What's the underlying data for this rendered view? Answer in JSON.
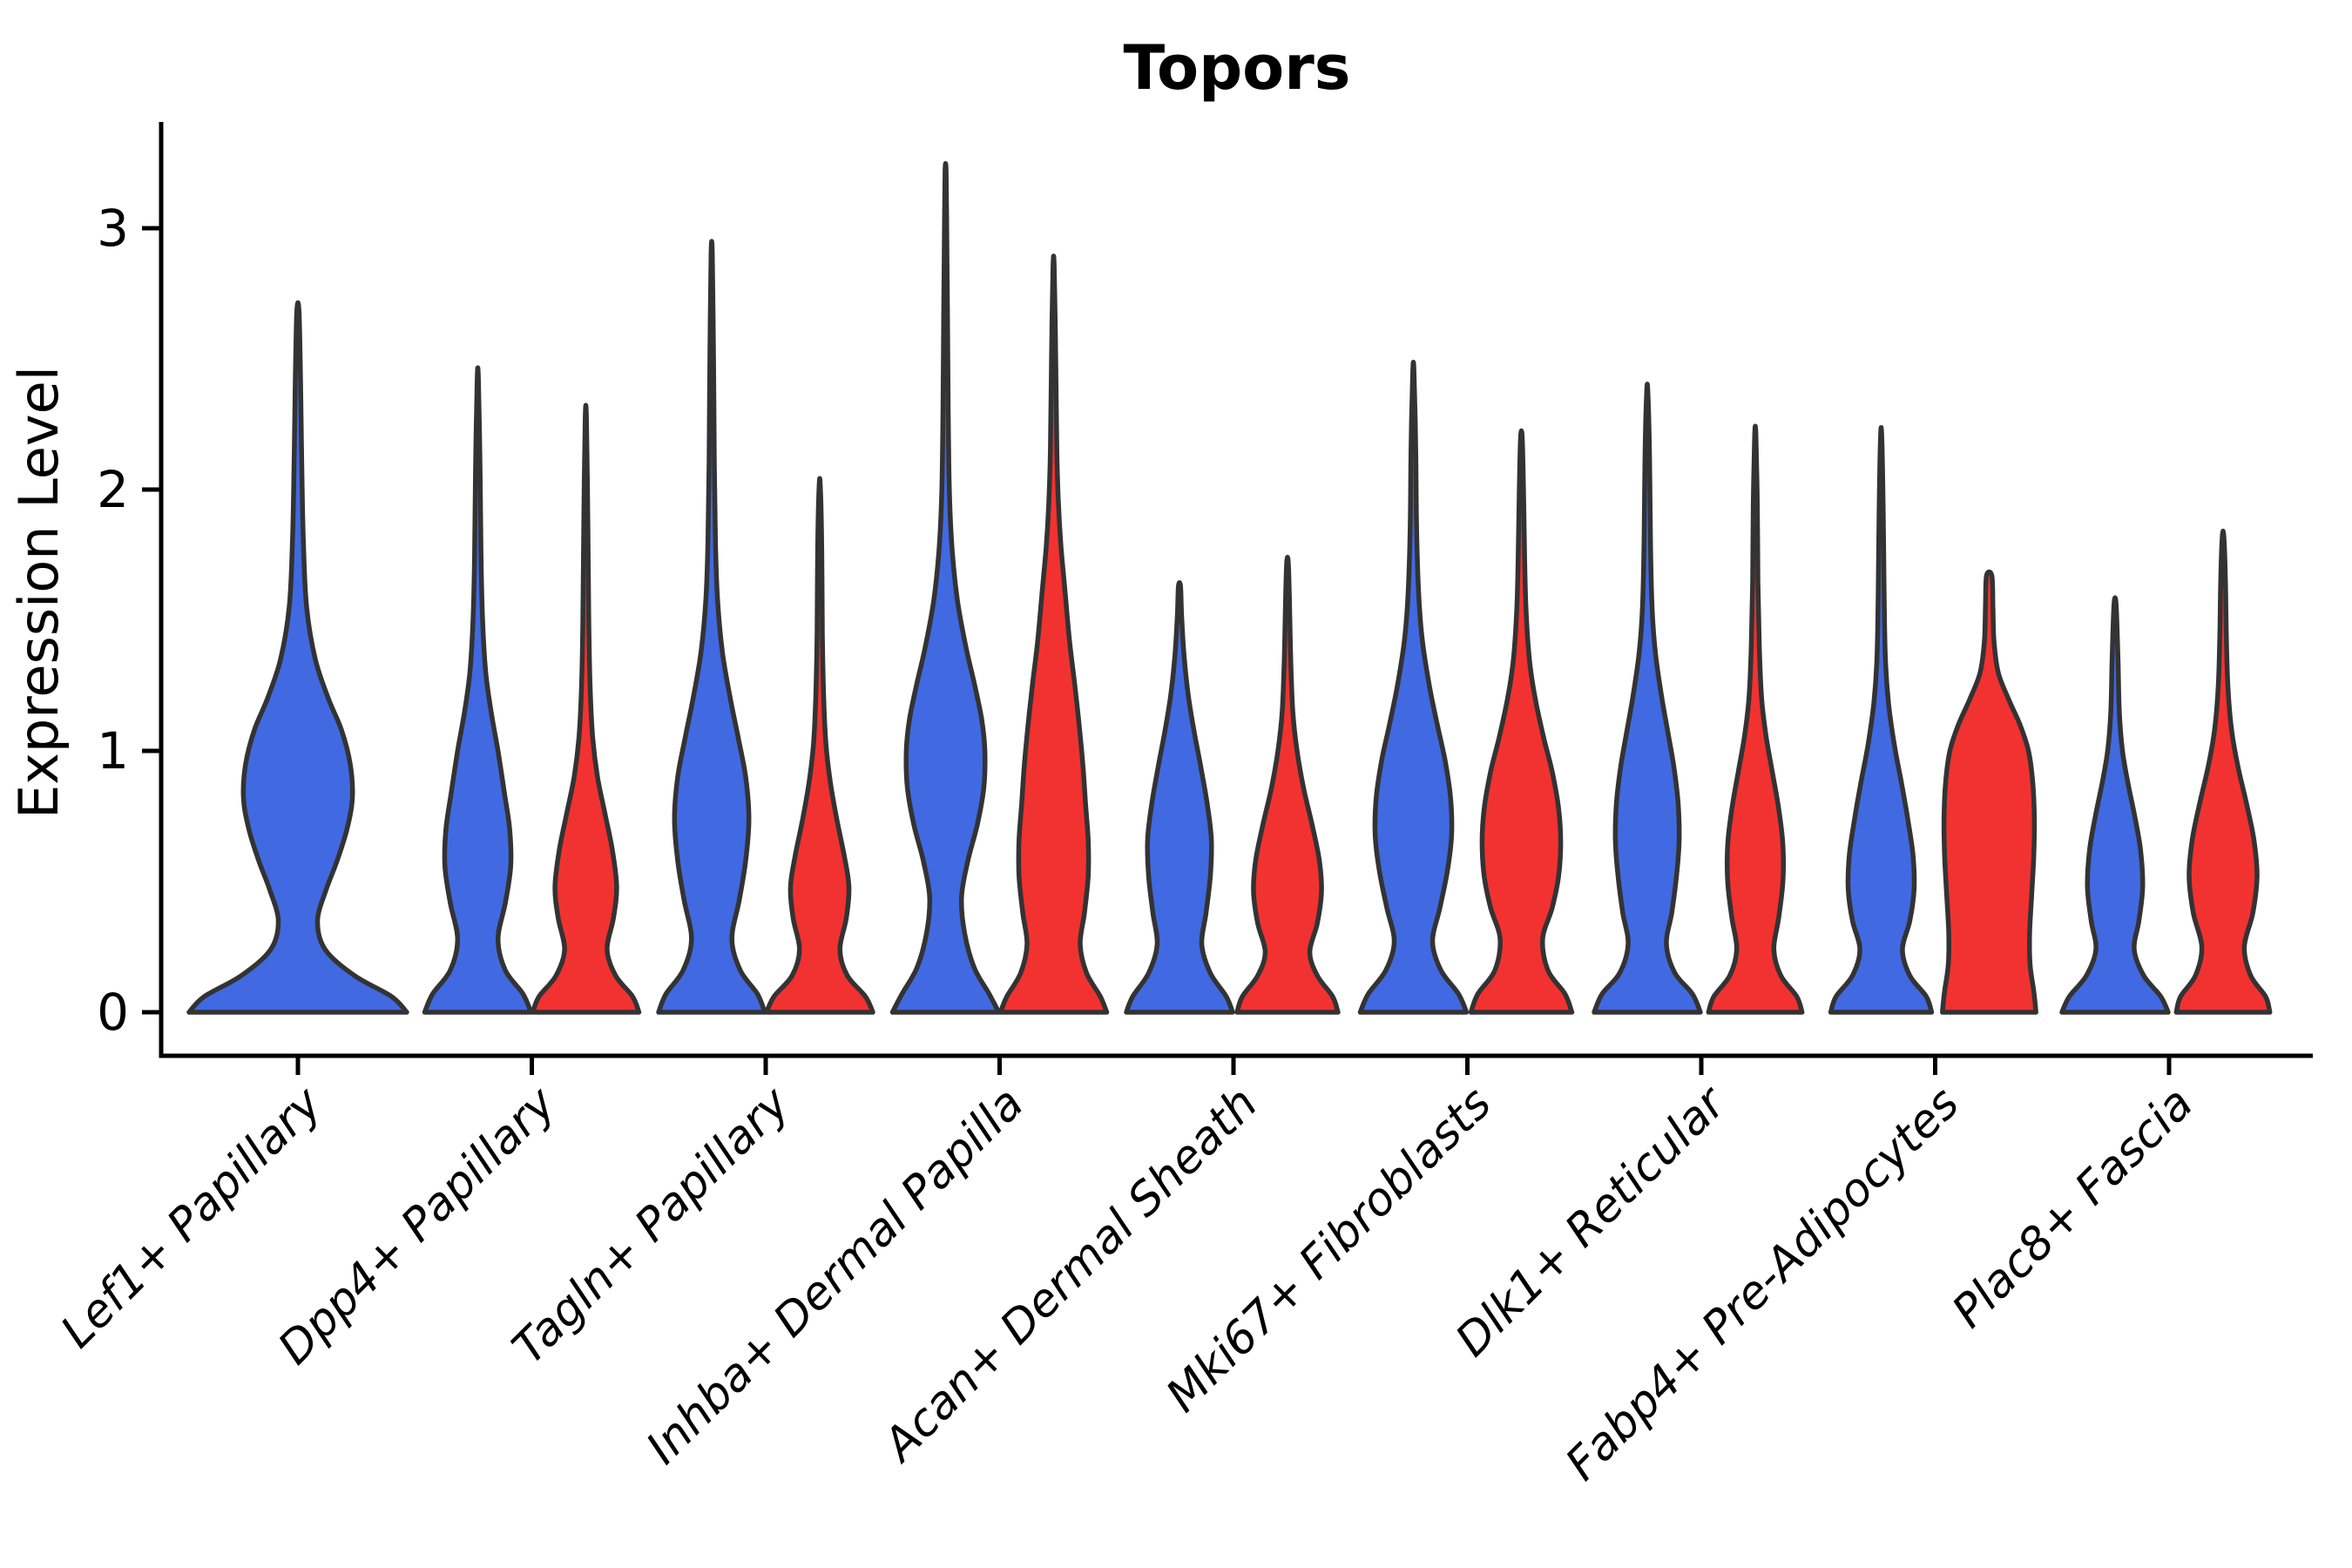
{
  "chart_data": {
    "type": "violin",
    "title": "Topors",
    "ylabel": "Expression Level",
    "xlabel": "",
    "yticks": [
      0,
      1,
      2,
      3
    ],
    "ylim": [
      0,
      3.4
    ],
    "grid": false,
    "legend": "none",
    "groups": {
      "blue": "#4169E1",
      "red": "#F23230"
    },
    "outline_color": "#333333",
    "axis_color": "#000000",
    "categories": [
      "Lef1+ Papillary",
      "Dpp4+ Papillary",
      "Tagln+ Papillary",
      "Inhba+ Dermal Papilla",
      "Acan+ Dermal Sheath",
      "Mki67+ Fibroblasts",
      "Dlk1+ Reticular",
      "Fabp4+ Pre-Adipocytes",
      "Plac8+ Fascia"
    ],
    "violins": [
      {
        "category": "Lef1+ Papillary",
        "group": "blue",
        "position": 0,
        "offset": 0,
        "width_scale": 2.05,
        "max_expression": 2.68,
        "profile": [
          [
            0,
            1.0
          ],
          [
            0.06,
            0.86
          ],
          [
            0.14,
            0.52
          ],
          [
            0.24,
            0.25
          ],
          [
            0.35,
            0.18
          ],
          [
            0.47,
            0.26
          ],
          [
            0.58,
            0.36
          ],
          [
            0.7,
            0.45
          ],
          [
            0.82,
            0.5
          ],
          [
            0.95,
            0.48
          ],
          [
            1.08,
            0.4
          ],
          [
            1.2,
            0.28
          ],
          [
            1.35,
            0.16
          ],
          [
            1.55,
            0.08
          ],
          [
            1.8,
            0.05
          ],
          [
            2.1,
            0.035
          ],
          [
            2.4,
            0.025
          ],
          [
            2.68,
            0.01
          ]
        ]
      },
      {
        "category": "Dpp4+ Papillary",
        "group": "blue",
        "position": 1,
        "offset": -1,
        "width_scale": 1,
        "max_expression": 2.42,
        "profile": [
          [
            0,
            1.0
          ],
          [
            0.07,
            0.85
          ],
          [
            0.16,
            0.52
          ],
          [
            0.28,
            0.38
          ],
          [
            0.42,
            0.52
          ],
          [
            0.56,
            0.62
          ],
          [
            0.7,
            0.6
          ],
          [
            0.84,
            0.5
          ],
          [
            1.0,
            0.38
          ],
          [
            1.15,
            0.25
          ],
          [
            1.3,
            0.15
          ],
          [
            1.5,
            0.09
          ],
          [
            1.75,
            0.06
          ],
          [
            2.05,
            0.045
          ],
          [
            2.42,
            0.012
          ]
        ]
      },
      {
        "category": "Dpp4+ Papillary",
        "group": "red",
        "position": 1,
        "offset": 1,
        "width_scale": 1,
        "max_expression": 2.27,
        "profile": [
          [
            0,
            1.0
          ],
          [
            0.06,
            0.88
          ],
          [
            0.14,
            0.56
          ],
          [
            0.24,
            0.4
          ],
          [
            0.36,
            0.52
          ],
          [
            0.48,
            0.58
          ],
          [
            0.62,
            0.5
          ],
          [
            0.76,
            0.36
          ],
          [
            0.9,
            0.22
          ],
          [
            1.05,
            0.13
          ],
          [
            1.25,
            0.08
          ],
          [
            1.5,
            0.055
          ],
          [
            1.85,
            0.04
          ],
          [
            2.27,
            0.012
          ]
        ]
      },
      {
        "category": "Tagln+ Papillary",
        "group": "blue",
        "position": 2,
        "offset": -1,
        "width_scale": 1,
        "max_expression": 2.9,
        "profile": [
          [
            0,
            1.0
          ],
          [
            0.07,
            0.86
          ],
          [
            0.16,
            0.54
          ],
          [
            0.28,
            0.38
          ],
          [
            0.43,
            0.52
          ],
          [
            0.58,
            0.64
          ],
          [
            0.74,
            0.7
          ],
          [
            0.9,
            0.64
          ],
          [
            1.05,
            0.5
          ],
          [
            1.2,
            0.35
          ],
          [
            1.38,
            0.2
          ],
          [
            1.58,
            0.11
          ],
          [
            1.8,
            0.07
          ],
          [
            2.1,
            0.05
          ],
          [
            2.5,
            0.035
          ],
          [
            2.9,
            0.012
          ]
        ]
      },
      {
        "category": "Tagln+ Papillary",
        "group": "red",
        "position": 2,
        "offset": 1,
        "width_scale": 1,
        "max_expression": 2.01,
        "profile": [
          [
            0,
            1.0
          ],
          [
            0.06,
            0.86
          ],
          [
            0.14,
            0.52
          ],
          [
            0.24,
            0.38
          ],
          [
            0.36,
            0.5
          ],
          [
            0.48,
            0.55
          ],
          [
            0.6,
            0.46
          ],
          [
            0.74,
            0.32
          ],
          [
            0.88,
            0.2
          ],
          [
            1.02,
            0.12
          ],
          [
            1.2,
            0.075
          ],
          [
            1.45,
            0.05
          ],
          [
            1.75,
            0.04
          ],
          [
            2.01,
            0.012
          ]
        ]
      },
      {
        "category": "Inhba+ Dermal Papilla",
        "group": "blue",
        "position": 3,
        "offset": -1,
        "width_scale": 1,
        "max_expression": 3.22,
        "profile": [
          [
            0,
            1.0
          ],
          [
            0.07,
            0.82
          ],
          [
            0.17,
            0.54
          ],
          [
            0.3,
            0.36
          ],
          [
            0.44,
            0.3
          ],
          [
            0.58,
            0.42
          ],
          [
            0.72,
            0.6
          ],
          [
            0.86,
            0.72
          ],
          [
            1.0,
            0.74
          ],
          [
            1.12,
            0.68
          ],
          [
            1.25,
            0.55
          ],
          [
            1.4,
            0.38
          ],
          [
            1.58,
            0.22
          ],
          [
            1.78,
            0.12
          ],
          [
            2.0,
            0.07
          ],
          [
            2.3,
            0.05
          ],
          [
            2.7,
            0.035
          ],
          [
            3.0,
            0.022
          ],
          [
            3.22,
            0.01
          ]
        ]
      },
      {
        "category": "Inhba+ Dermal Papilla",
        "group": "red",
        "position": 3,
        "offset": 1,
        "width_scale": 1,
        "max_expression": 2.85,
        "profile": [
          [
            0,
            1.0
          ],
          [
            0.06,
            0.88
          ],
          [
            0.15,
            0.62
          ],
          [
            0.26,
            0.5
          ],
          [
            0.38,
            0.58
          ],
          [
            0.52,
            0.65
          ],
          [
            0.66,
            0.65
          ],
          [
            0.8,
            0.6
          ],
          [
            0.95,
            0.55
          ],
          [
            1.1,
            0.48
          ],
          [
            1.25,
            0.4
          ],
          [
            1.42,
            0.3
          ],
          [
            1.6,
            0.22
          ],
          [
            1.78,
            0.14
          ],
          [
            1.95,
            0.09
          ],
          [
            2.15,
            0.06
          ],
          [
            2.5,
            0.04
          ],
          [
            2.85,
            0.012
          ]
        ]
      },
      {
        "category": "Acan+ Dermal Sheath",
        "group": "blue",
        "position": 4,
        "offset": -1,
        "width_scale": 1,
        "max_expression": 1.63,
        "profile": [
          [
            0,
            1.0
          ],
          [
            0.06,
            0.88
          ],
          [
            0.15,
            0.58
          ],
          [
            0.26,
            0.42
          ],
          [
            0.38,
            0.5
          ],
          [
            0.52,
            0.58
          ],
          [
            0.66,
            0.6
          ],
          [
            0.8,
            0.52
          ],
          [
            0.94,
            0.4
          ],
          [
            1.08,
            0.27
          ],
          [
            1.22,
            0.16
          ],
          [
            1.38,
            0.08
          ],
          [
            1.52,
            0.04
          ],
          [
            1.63,
            0.02
          ]
        ]
      },
      {
        "category": "Acan+ Dermal Sheath",
        "group": "red",
        "position": 4,
        "offset": 1,
        "width_scale": 1,
        "max_expression": 1.72,
        "profile": [
          [
            0,
            0.95
          ],
          [
            0.06,
            0.85
          ],
          [
            0.14,
            0.56
          ],
          [
            0.23,
            0.42
          ],
          [
            0.34,
            0.56
          ],
          [
            0.46,
            0.64
          ],
          [
            0.58,
            0.6
          ],
          [
            0.72,
            0.46
          ],
          [
            0.86,
            0.3
          ],
          [
            1.0,
            0.18
          ],
          [
            1.15,
            0.1
          ],
          [
            1.35,
            0.06
          ],
          [
            1.55,
            0.04
          ],
          [
            1.72,
            0.015
          ]
        ]
      },
      {
        "category": "Mki67+ Fibroblasts",
        "group": "blue",
        "position": 5,
        "offset": -1,
        "width_scale": 1,
        "max_expression": 2.45,
        "profile": [
          [
            0,
            1.0
          ],
          [
            0.07,
            0.85
          ],
          [
            0.16,
            0.52
          ],
          [
            0.27,
            0.36
          ],
          [
            0.4,
            0.5
          ],
          [
            0.54,
            0.64
          ],
          [
            0.68,
            0.72
          ],
          [
            0.82,
            0.7
          ],
          [
            0.96,
            0.6
          ],
          [
            1.1,
            0.45
          ],
          [
            1.25,
            0.3
          ],
          [
            1.42,
            0.17
          ],
          [
            1.6,
            0.1
          ],
          [
            1.85,
            0.06
          ],
          [
            2.15,
            0.045
          ],
          [
            2.45,
            0.012
          ]
        ]
      },
      {
        "category": "Mki67+ Fibroblasts",
        "group": "red",
        "position": 5,
        "offset": 1,
        "width_scale": 1,
        "max_expression": 2.2,
        "profile": [
          [
            0,
            0.95
          ],
          [
            0.07,
            0.82
          ],
          [
            0.16,
            0.5
          ],
          [
            0.28,
            0.4
          ],
          [
            0.4,
            0.58
          ],
          [
            0.52,
            0.7
          ],
          [
            0.65,
            0.74
          ],
          [
            0.78,
            0.7
          ],
          [
            0.92,
            0.58
          ],
          [
            1.05,
            0.42
          ],
          [
            1.2,
            0.26
          ],
          [
            1.35,
            0.15
          ],
          [
            1.55,
            0.085
          ],
          [
            1.8,
            0.055
          ],
          [
            2.0,
            0.04
          ],
          [
            2.2,
            0.015
          ]
        ]
      },
      {
        "category": "Dlk1+ Reticular",
        "group": "blue",
        "position": 6,
        "offset": -1,
        "width_scale": 1,
        "max_expression": 2.37,
        "profile": [
          [
            0,
            1.0
          ],
          [
            0.07,
            0.85
          ],
          [
            0.15,
            0.52
          ],
          [
            0.26,
            0.36
          ],
          [
            0.38,
            0.46
          ],
          [
            0.52,
            0.55
          ],
          [
            0.66,
            0.6
          ],
          [
            0.8,
            0.58
          ],
          [
            0.94,
            0.5
          ],
          [
            1.08,
            0.38
          ],
          [
            1.22,
            0.26
          ],
          [
            1.38,
            0.15
          ],
          [
            1.55,
            0.09
          ],
          [
            1.8,
            0.06
          ],
          [
            2.1,
            0.045
          ],
          [
            2.37,
            0.012
          ]
        ]
      },
      {
        "category": "Dlk1+ Reticular",
        "group": "red",
        "position": 6,
        "offset": 1,
        "width_scale": 1,
        "max_expression": 2.21,
        "profile": [
          [
            0,
            0.88
          ],
          [
            0.06,
            0.78
          ],
          [
            0.14,
            0.48
          ],
          [
            0.24,
            0.35
          ],
          [
            0.36,
            0.44
          ],
          [
            0.5,
            0.52
          ],
          [
            0.64,
            0.52
          ],
          [
            0.78,
            0.44
          ],
          [
            0.92,
            0.32
          ],
          [
            1.06,
            0.2
          ],
          [
            1.2,
            0.12
          ],
          [
            1.4,
            0.075
          ],
          [
            1.65,
            0.05
          ],
          [
            1.95,
            0.038
          ],
          [
            2.21,
            0.012
          ]
        ]
      },
      {
        "category": "Fabp4+ Pre-Adipocytes",
        "group": "blue",
        "position": 7,
        "offset": -1,
        "width_scale": 1,
        "max_expression": 2.2,
        "profile": [
          [
            0,
            0.95
          ],
          [
            0.06,
            0.85
          ],
          [
            0.14,
            0.54
          ],
          [
            0.24,
            0.4
          ],
          [
            0.35,
            0.54
          ],
          [
            0.47,
            0.62
          ],
          [
            0.6,
            0.6
          ],
          [
            0.74,
            0.5
          ],
          [
            0.88,
            0.38
          ],
          [
            1.02,
            0.25
          ],
          [
            1.18,
            0.14
          ],
          [
            1.35,
            0.08
          ],
          [
            1.6,
            0.055
          ],
          [
            1.9,
            0.04
          ],
          [
            2.2,
            0.012
          ]
        ]
      },
      {
        "category": "Fabp4+ Pre-Adipocytes",
        "group": "red",
        "position": 7,
        "offset": 1,
        "width_scale": 1,
        "max_expression": 1.67,
        "profile": [
          [
            0,
            0.88
          ],
          [
            0.08,
            0.84
          ],
          [
            0.18,
            0.77
          ],
          [
            0.3,
            0.76
          ],
          [
            0.45,
            0.8
          ],
          [
            0.6,
            0.84
          ],
          [
            0.75,
            0.85
          ],
          [
            0.88,
            0.82
          ],
          [
            1.0,
            0.74
          ],
          [
            1.1,
            0.58
          ],
          [
            1.2,
            0.36
          ],
          [
            1.3,
            0.17
          ],
          [
            1.42,
            0.09
          ],
          [
            1.55,
            0.07
          ],
          [
            1.67,
            0.05
          ]
        ]
      },
      {
        "category": "Plac8+ Fascia",
        "group": "blue",
        "position": 8,
        "offset": -1,
        "width_scale": 1,
        "max_expression": 1.56,
        "profile": [
          [
            0,
            1.0
          ],
          [
            0.06,
            0.86
          ],
          [
            0.14,
            0.54
          ],
          [
            0.24,
            0.36
          ],
          [
            0.35,
            0.45
          ],
          [
            0.48,
            0.52
          ],
          [
            0.62,
            0.48
          ],
          [
            0.75,
            0.37
          ],
          [
            0.88,
            0.24
          ],
          [
            1.0,
            0.14
          ],
          [
            1.15,
            0.08
          ],
          [
            1.35,
            0.055
          ],
          [
            1.56,
            0.02
          ]
        ]
      },
      {
        "category": "Plac8+ Fascia",
        "group": "red",
        "position": 8,
        "offset": 1,
        "width_scale": 1,
        "max_expression": 1.82,
        "profile": [
          [
            0,
            0.88
          ],
          [
            0.06,
            0.8
          ],
          [
            0.14,
            0.52
          ],
          [
            0.25,
            0.4
          ],
          [
            0.38,
            0.56
          ],
          [
            0.52,
            0.64
          ],
          [
            0.66,
            0.58
          ],
          [
            0.8,
            0.44
          ],
          [
            0.94,
            0.28
          ],
          [
            1.08,
            0.16
          ],
          [
            1.25,
            0.09
          ],
          [
            1.45,
            0.06
          ],
          [
            1.65,
            0.045
          ],
          [
            1.82,
            0.015
          ]
        ]
      }
    ]
  }
}
